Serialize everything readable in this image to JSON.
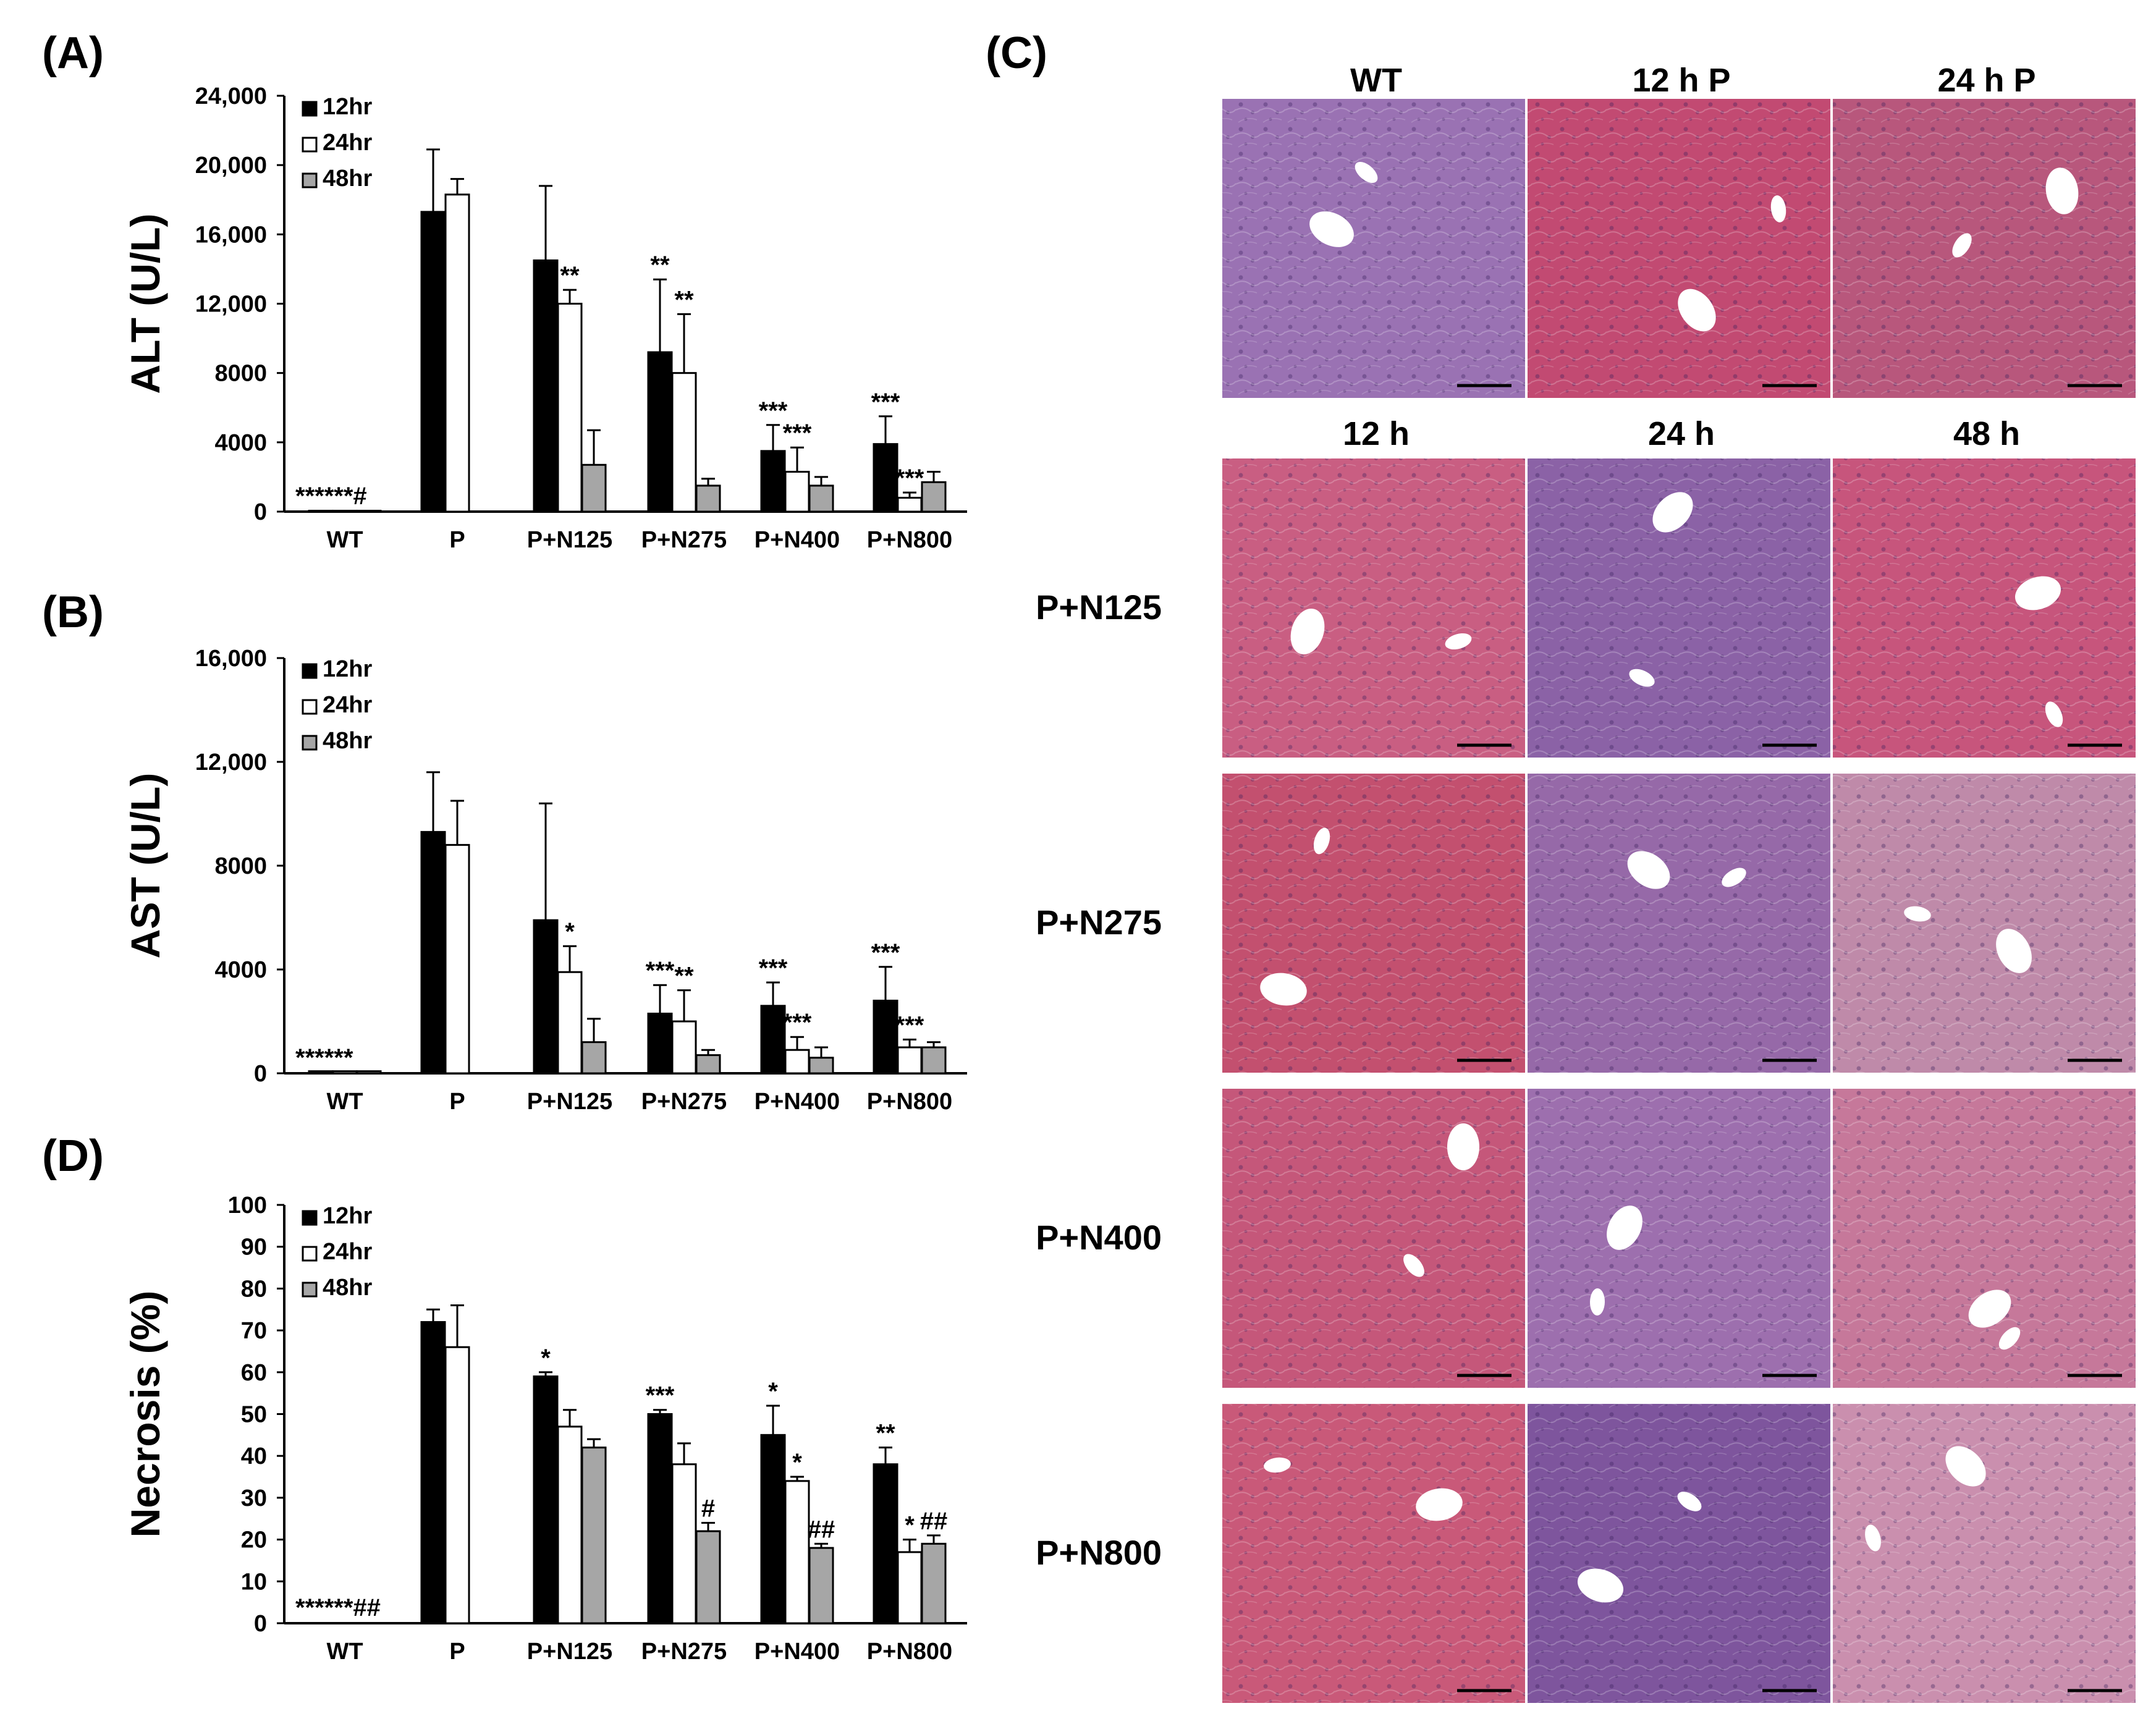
{
  "figure": {
    "panel_labels": {
      "A": "(A)",
      "B": "(B)",
      "C": "(C)",
      "D": "(D)"
    }
  },
  "chart_data": [
    {
      "id": "A",
      "type": "bar",
      "ylabel": "ALT (U/L)",
      "ylim": [
        0,
        24000
      ],
      "yticks": [
        0,
        4000,
        8000,
        12000,
        16000,
        20000,
        24000
      ],
      "ytick_labels": [
        "0",
        "4000",
        "8000",
        "12,000",
        "16,000",
        "20,000",
        "24,000"
      ],
      "categories": [
        "WT",
        "P",
        "P+N125",
        "P+N275",
        "P+N400",
        "P+N800"
      ],
      "legend": [
        "12hr",
        "24hr",
        "48hr"
      ],
      "legend_position": "top-left",
      "series": [
        {
          "name": "12hr",
          "color": "#000000",
          "values": [
            50,
            17300,
            14500,
            9200,
            3500,
            3900
          ],
          "errors": [
            0,
            3600,
            4300,
            4200,
            1500,
            1600
          ]
        },
        {
          "name": "24hr",
          "color": "#ffffff",
          "values": [
            50,
            18300,
            12000,
            8000,
            2300,
            800
          ],
          "errors": [
            0,
            900,
            800,
            3400,
            1400,
            300
          ]
        },
        {
          "name": "48hr",
          "color": "#a6a6a6",
          "values": [
            50,
            null,
            2700,
            1500,
            1500,
            1700
          ],
          "errors": [
            0,
            null,
            2000,
            400,
            500,
            600
          ]
        }
      ],
      "annotations": [
        {
          "category": 0,
          "series": 1,
          "text": "******#"
        },
        {
          "category": 2,
          "series": 1,
          "text": "**"
        },
        {
          "category": 3,
          "series": 0,
          "text": "**"
        },
        {
          "category": 3,
          "series": 1,
          "text": "**"
        },
        {
          "category": 4,
          "series": 0,
          "text": "***"
        },
        {
          "category": 4,
          "series": 1,
          "text": "***"
        },
        {
          "category": 5,
          "series": 0,
          "text": "***"
        },
        {
          "category": 5,
          "series": 1,
          "text": "***"
        }
      ]
    },
    {
      "id": "B",
      "type": "bar",
      "ylabel": "AST (U/L)",
      "ylim": [
        0,
        16000
      ],
      "yticks": [
        0,
        4000,
        8000,
        12000,
        16000
      ],
      "ytick_labels": [
        "0",
        "4000",
        "8000",
        "12,000",
        "16,000"
      ],
      "categories": [
        "WT",
        "P",
        "P+N125",
        "P+N275",
        "P+N400",
        "P+N800"
      ],
      "legend": [
        "12hr",
        "24hr",
        "48hr"
      ],
      "legend_position": "top-left",
      "series": [
        {
          "name": "12hr",
          "color": "#000000",
          "values": [
            80,
            9300,
            5900,
            2300,
            2600,
            2800
          ],
          "errors": [
            0,
            2300,
            4500,
            1100,
            900,
            1300
          ]
        },
        {
          "name": "24hr",
          "color": "#ffffff",
          "values": [
            80,
            8800,
            3900,
            2000,
            900,
            1000
          ],
          "errors": [
            0,
            1700,
            1000,
            1200,
            500,
            300
          ]
        },
        {
          "name": "48hr",
          "color": "#a6a6a6",
          "values": [
            80,
            null,
            1200,
            700,
            600,
            1000
          ],
          "errors": [
            0,
            null,
            900,
            200,
            400,
            200
          ]
        }
      ],
      "annotations": [
        {
          "category": 0,
          "series": 1,
          "text": "******"
        },
        {
          "category": 2,
          "series": 1,
          "text": "*"
        },
        {
          "category": 3,
          "series": 0,
          "text": "***"
        },
        {
          "category": 3,
          "series": 1,
          "text": "**"
        },
        {
          "category": 4,
          "series": 0,
          "text": "***"
        },
        {
          "category": 4,
          "series": 1,
          "text": "***"
        },
        {
          "category": 5,
          "series": 0,
          "text": "***"
        },
        {
          "category": 5,
          "series": 1,
          "text": "***"
        }
      ]
    },
    {
      "id": "D",
      "type": "bar",
      "ylabel": "Necrosis (%)",
      "ylim": [
        0,
        100
      ],
      "yticks": [
        0,
        10,
        20,
        30,
        40,
        50,
        60,
        70,
        80,
        90,
        100
      ],
      "ytick_labels": [
        "0",
        "10",
        "20",
        "30",
        "40",
        "50",
        "60",
        "70",
        "80",
        "90",
        "100"
      ],
      "categories": [
        "WT",
        "P",
        "P+N125",
        "P+N275",
        "P+N400",
        "P+N800"
      ],
      "legend": [
        "12hr",
        "24hr",
        "48hr"
      ],
      "legend_position": "top-left",
      "series": [
        {
          "name": "12hr",
          "color": "#000000",
          "values": [
            0,
            72,
            59,
            50,
            45,
            38
          ],
          "errors": [
            0,
            3,
            1,
            1,
            7,
            4
          ]
        },
        {
          "name": "24hr",
          "color": "#ffffff",
          "values": [
            0,
            66,
            47,
            38,
            34,
            17
          ],
          "errors": [
            0,
            10,
            4,
            5,
            1,
            3
          ]
        },
        {
          "name": "48hr",
          "color": "#a6a6a6",
          "values": [
            0,
            null,
            42,
            22,
            18,
            19
          ],
          "errors": [
            0,
            null,
            2,
            2,
            1,
            2
          ]
        }
      ],
      "annotations": [
        {
          "category": 0,
          "series": 1,
          "text": "******##"
        },
        {
          "category": 2,
          "series": 0,
          "text": "*"
        },
        {
          "category": 3,
          "series": 0,
          "text": "***"
        },
        {
          "category": 3,
          "series": 2,
          "text": "#"
        },
        {
          "category": 4,
          "series": 0,
          "text": "*"
        },
        {
          "category": 4,
          "series": 1,
          "text": "*"
        },
        {
          "category": 4,
          "series": 2,
          "text": "##"
        },
        {
          "category": 5,
          "series": 0,
          "text": "**"
        },
        {
          "category": 5,
          "series": 1,
          "text": "*"
        },
        {
          "category": 5,
          "series": 2,
          "text": "##"
        }
      ]
    }
  ],
  "histology": {
    "panel": "C",
    "column_headers_top": [
      "WT",
      "12 h P",
      "24 h P"
    ],
    "column_headers_time": [
      "12 h",
      "24 h",
      "48 h"
    ],
    "row_labels": [
      "P+N125",
      "P+N275",
      "P+N400",
      "P+N800"
    ],
    "tile_colors": [
      [
        "#9a72b3",
        "#c24a72",
        "#b8577c"
      ],
      [
        "#c95e82",
        "#8b62a6",
        "#c7557c"
      ],
      [
        "#c3506f",
        "#9669a8",
        "#bf8aa9"
      ],
      [
        "#c5577a",
        "#9d6fae",
        "#c6789a"
      ],
      [
        "#c95979",
        "#7e559d",
        "#ca8fae"
      ]
    ]
  }
}
